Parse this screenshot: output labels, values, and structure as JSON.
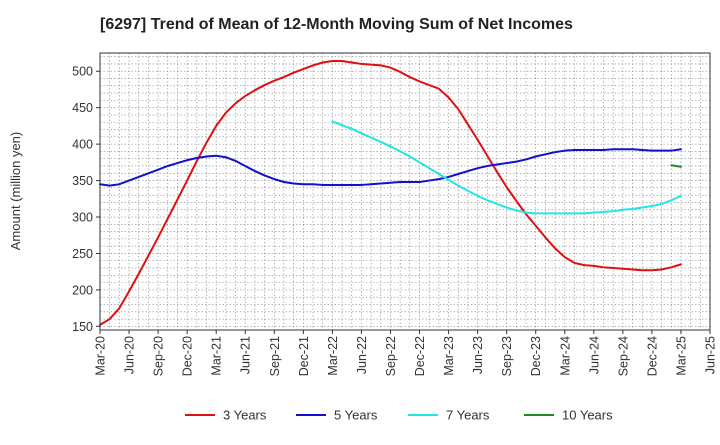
{
  "chart_data": {
    "type": "line",
    "title": "[6297]  Trend of Mean of 12-Month Moving Sum of Net Incomes",
    "xlabel": "",
    "ylabel": "Amount (million yen)",
    "ylim": [
      145,
      525
    ],
    "xlim": [
      "2020-03",
      "2025-06"
    ],
    "yticks": [
      150,
      200,
      250,
      300,
      350,
      400,
      450,
      500
    ],
    "xticks": [
      "Mar-20",
      "Jun-20",
      "Sep-20",
      "Dec-20",
      "Mar-21",
      "Jun-21",
      "Sep-21",
      "Dec-21",
      "Mar-22",
      "Jun-22",
      "Sep-22",
      "Dec-22",
      "Mar-23",
      "Jun-23",
      "Sep-23",
      "Dec-23",
      "Mar-24",
      "Jun-24",
      "Sep-24",
      "Dec-24",
      "Mar-25",
      "Jun-25"
    ],
    "grid": true,
    "legend_position": "bottom",
    "series": [
      {
        "name": "3 Years",
        "color": "#dd1111",
        "points": [
          [
            "2020-03",
            152
          ],
          [
            "2020-04",
            160
          ],
          [
            "2020-05",
            175
          ],
          [
            "2020-06",
            198
          ],
          [
            "2020-07",
            222
          ],
          [
            "2020-08",
            247
          ],
          [
            "2020-09",
            272
          ],
          [
            "2020-10",
            298
          ],
          [
            "2020-11",
            324
          ],
          [
            "2020-12",
            350
          ],
          [
            "2021-01",
            377
          ],
          [
            "2021-02",
            402
          ],
          [
            "2021-03",
            425
          ],
          [
            "2021-04",
            443
          ],
          [
            "2021-05",
            456
          ],
          [
            "2021-06",
            466
          ],
          [
            "2021-07",
            474
          ],
          [
            "2021-08",
            481
          ],
          [
            "2021-09",
            487
          ],
          [
            "2021-10",
            492
          ],
          [
            "2021-11",
            498
          ],
          [
            "2021-12",
            503
          ],
          [
            "2022-01",
            508
          ],
          [
            "2022-02",
            512
          ],
          [
            "2022-03",
            514
          ],
          [
            "2022-04",
            514
          ],
          [
            "2022-05",
            512
          ],
          [
            "2022-06",
            510
          ],
          [
            "2022-07",
            509
          ],
          [
            "2022-08",
            508
          ],
          [
            "2022-09",
            505
          ],
          [
            "2022-10",
            499
          ],
          [
            "2022-11",
            492
          ],
          [
            "2022-12",
            486
          ],
          [
            "2023-01",
            481
          ],
          [
            "2023-02",
            476
          ],
          [
            "2023-03",
            464
          ],
          [
            "2023-04",
            448
          ],
          [
            "2023-05",
            427
          ],
          [
            "2023-06",
            406
          ],
          [
            "2023-07",
            384
          ],
          [
            "2023-08",
            362
          ],
          [
            "2023-09",
            341
          ],
          [
            "2023-10",
            322
          ],
          [
            "2023-11",
            304
          ],
          [
            "2023-12",
            288
          ],
          [
            "2024-01",
            272
          ],
          [
            "2024-02",
            257
          ],
          [
            "2024-03",
            245
          ],
          [
            "2024-04",
            237
          ],
          [
            "2024-05",
            234
          ],
          [
            "2024-06",
            233
          ],
          [
            "2024-07",
            231
          ],
          [
            "2024-08",
            230
          ],
          [
            "2024-09",
            229
          ],
          [
            "2024-10",
            228
          ],
          [
            "2024-11",
            227
          ],
          [
            "2024-12",
            227
          ],
          [
            "2025-01",
            228
          ],
          [
            "2025-02",
            231
          ],
          [
            "2025-03",
            235
          ]
        ]
      },
      {
        "name": "5 Years",
        "color": "#1111cc",
        "points": [
          [
            "2020-03",
            345
          ],
          [
            "2020-04",
            343
          ],
          [
            "2020-05",
            345
          ],
          [
            "2020-06",
            350
          ],
          [
            "2020-07",
            355
          ],
          [
            "2020-08",
            360
          ],
          [
            "2020-09",
            365
          ],
          [
            "2020-10",
            370
          ],
          [
            "2020-11",
            374
          ],
          [
            "2020-12",
            378
          ],
          [
            "2021-01",
            381
          ],
          [
            "2021-02",
            383
          ],
          [
            "2021-03",
            384
          ],
          [
            "2021-04",
            382
          ],
          [
            "2021-05",
            377
          ],
          [
            "2021-06",
            370
          ],
          [
            "2021-07",
            363
          ],
          [
            "2021-08",
            357
          ],
          [
            "2021-09",
            352
          ],
          [
            "2021-10",
            348
          ],
          [
            "2021-11",
            346
          ],
          [
            "2021-12",
            345
          ],
          [
            "2022-01",
            345
          ],
          [
            "2022-02",
            344
          ],
          [
            "2022-03",
            344
          ],
          [
            "2022-04",
            344
          ],
          [
            "2022-05",
            344
          ],
          [
            "2022-06",
            344
          ],
          [
            "2022-07",
            345
          ],
          [
            "2022-08",
            346
          ],
          [
            "2022-09",
            347
          ],
          [
            "2022-10",
            348
          ],
          [
            "2022-11",
            348
          ],
          [
            "2022-12",
            348
          ],
          [
            "2023-01",
            350
          ],
          [
            "2023-02",
            352
          ],
          [
            "2023-03",
            355
          ],
          [
            "2023-04",
            359
          ],
          [
            "2023-05",
            363
          ],
          [
            "2023-06",
            367
          ],
          [
            "2023-07",
            370
          ],
          [
            "2023-08",
            372
          ],
          [
            "2023-09",
            374
          ],
          [
            "2023-10",
            376
          ],
          [
            "2023-11",
            379
          ],
          [
            "2023-12",
            383
          ],
          [
            "2024-01",
            386
          ],
          [
            "2024-02",
            389
          ],
          [
            "2024-03",
            391
          ],
          [
            "2024-04",
            392
          ],
          [
            "2024-05",
            392
          ],
          [
            "2024-06",
            392
          ],
          [
            "2024-07",
            392
          ],
          [
            "2024-08",
            393
          ],
          [
            "2024-09",
            393
          ],
          [
            "2024-10",
            393
          ],
          [
            "2024-11",
            392
          ],
          [
            "2024-12",
            391
          ],
          [
            "2025-01",
            391
          ],
          [
            "2025-02",
            391
          ],
          [
            "2025-03",
            393
          ]
        ]
      },
      {
        "name": "7 Years",
        "color": "#22e5e5",
        "points": [
          [
            "2022-03",
            431
          ],
          [
            "2022-04",
            426
          ],
          [
            "2022-05",
            421
          ],
          [
            "2022-06",
            415
          ],
          [
            "2022-07",
            409
          ],
          [
            "2022-08",
            403
          ],
          [
            "2022-09",
            397
          ],
          [
            "2022-10",
            390
          ],
          [
            "2022-11",
            383
          ],
          [
            "2022-12",
            375
          ],
          [
            "2023-01",
            367
          ],
          [
            "2023-02",
            359
          ],
          [
            "2023-03",
            351
          ],
          [
            "2023-04",
            343
          ],
          [
            "2023-05",
            336
          ],
          [
            "2023-06",
            329
          ],
          [
            "2023-07",
            323
          ],
          [
            "2023-08",
            318
          ],
          [
            "2023-09",
            313
          ],
          [
            "2023-10",
            309
          ],
          [
            "2023-11",
            306
          ],
          [
            "2023-12",
            305
          ],
          [
            "2024-01",
            305
          ],
          [
            "2024-02",
            305
          ],
          [
            "2024-03",
            305
          ],
          [
            "2024-04",
            305
          ],
          [
            "2024-05",
            305
          ],
          [
            "2024-06",
            306
          ],
          [
            "2024-07",
            307
          ],
          [
            "2024-08",
            308
          ],
          [
            "2024-09",
            310
          ],
          [
            "2024-10",
            311
          ],
          [
            "2024-11",
            313
          ],
          [
            "2024-12",
            315
          ],
          [
            "2025-01",
            318
          ],
          [
            "2025-02",
            323
          ],
          [
            "2025-03",
            329
          ]
        ]
      },
      {
        "name": "10 Years",
        "color": "#228822",
        "points": [
          [
            "2025-02",
            371
          ],
          [
            "2025-03",
            369
          ]
        ]
      }
    ]
  }
}
